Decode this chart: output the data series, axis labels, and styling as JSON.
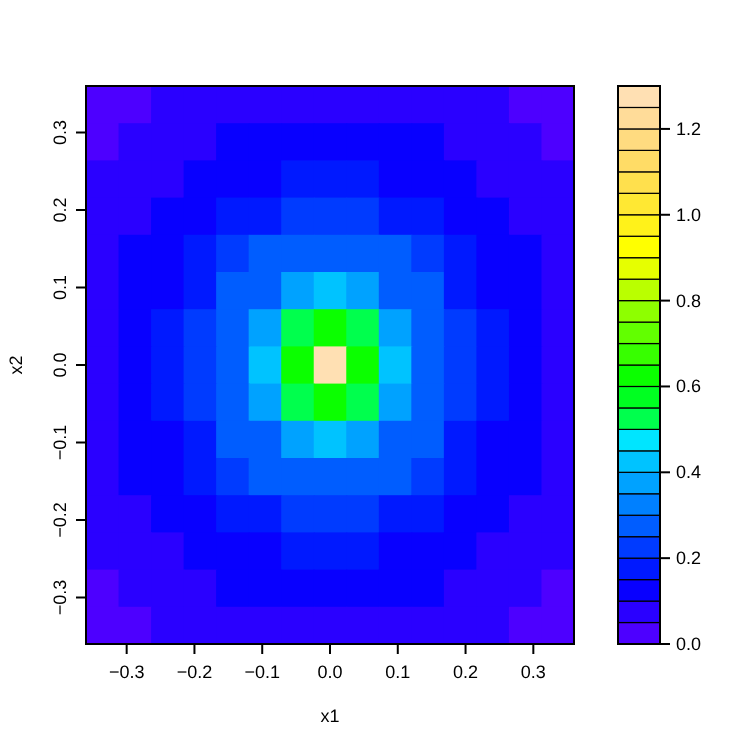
{
  "chart_data": {
    "type": "heatmap",
    "xlabel": "x1",
    "ylabel": "x2",
    "xlim": [
      -0.36,
      0.36
    ],
    "ylim": [
      -0.36,
      0.36
    ],
    "xticks": [
      -0.3,
      -0.2,
      -0.1,
      {
        "value": 0,
        "label": "0.0"
      },
      0.1,
      0.2,
      0.3
    ],
    "yticks": [
      -0.3,
      -0.2,
      -0.1,
      {
        "value": 0,
        "label": "0.0"
      },
      0.1,
      0.2,
      0.3
    ],
    "clim": [
      0,
      1.3
    ],
    "cticks": [
      {
        "value": 0,
        "label": "0.0"
      },
      0.2,
      0.4,
      0.6,
      0.8,
      {
        "value": 1,
        "label": "1.0"
      },
      1.2
    ],
    "colors": [
      "#4d00ff",
      "#2a00ff",
      "#0800ff",
      "#0019ff",
      "#003bff",
      "#005dff",
      "#0080ff",
      "#00a2ff",
      "#00c3ff",
      "#00e5ff",
      "#00ff4d",
      "#00ff21",
      "#0bff00",
      "#37ff00",
      "#62ff00",
      "#8eff00",
      "#baff00",
      "#e6ff00",
      "#ffff00",
      "#fff21a",
      "#ffe833",
      "#ffe04d",
      "#ffdc66",
      "#ffdb80",
      "#ffdc99",
      "#ffe0b3"
    ],
    "cells": [
      [
        0.04,
        0.045,
        0.055,
        0.07,
        0.08,
        0.09,
        0.09,
        0.09,
        0.09,
        0.09,
        0.08,
        0.07,
        0.055,
        0.045,
        0.04
      ],
      [
        0.045,
        0.06,
        0.07,
        0.09,
        0.1,
        0.11,
        0.12,
        0.125,
        0.12,
        0.11,
        0.1,
        0.09,
        0.07,
        0.06,
        0.045
      ],
      [
        0.055,
        0.07,
        0.09,
        0.11,
        0.13,
        0.15,
        0.16,
        0.165,
        0.16,
        0.15,
        0.13,
        0.11,
        0.09,
        0.07,
        0.055
      ],
      [
        0.07,
        0.09,
        0.11,
        0.14,
        0.165,
        0.19,
        0.21,
        0.22,
        0.21,
        0.19,
        0.165,
        0.14,
        0.11,
        0.09,
        0.07
      ],
      [
        0.08,
        0.1,
        0.13,
        0.165,
        0.2,
        0.25,
        0.28,
        0.29,
        0.28,
        0.25,
        0.2,
        0.165,
        0.13,
        0.1,
        0.08
      ],
      [
        0.09,
        0.11,
        0.15,
        0.19,
        0.25,
        0.3,
        0.38,
        0.42,
        0.38,
        0.3,
        0.25,
        0.19,
        0.15,
        0.11,
        0.09
      ],
      [
        0.09,
        0.12,
        0.16,
        0.21,
        0.28,
        0.38,
        0.5,
        0.62,
        0.5,
        0.38,
        0.28,
        0.21,
        0.16,
        0.12,
        0.09
      ],
      [
        0.09,
        0.125,
        0.165,
        0.22,
        0.29,
        0.42,
        0.62,
        1.3,
        0.62,
        0.42,
        0.29,
        0.22,
        0.165,
        0.125,
        0.09
      ],
      [
        0.09,
        0.12,
        0.16,
        0.21,
        0.28,
        0.38,
        0.5,
        0.62,
        0.5,
        0.38,
        0.28,
        0.21,
        0.16,
        0.12,
        0.09
      ],
      [
        0.09,
        0.11,
        0.15,
        0.19,
        0.25,
        0.3,
        0.38,
        0.42,
        0.38,
        0.3,
        0.25,
        0.19,
        0.15,
        0.11,
        0.09
      ],
      [
        0.08,
        0.1,
        0.13,
        0.165,
        0.2,
        0.25,
        0.28,
        0.29,
        0.28,
        0.25,
        0.2,
        0.165,
        0.13,
        0.1,
        0.08
      ],
      [
        0.07,
        0.09,
        0.11,
        0.14,
        0.165,
        0.19,
        0.21,
        0.22,
        0.21,
        0.19,
        0.165,
        0.14,
        0.11,
        0.09,
        0.07
      ],
      [
        0.055,
        0.07,
        0.09,
        0.11,
        0.13,
        0.15,
        0.16,
        0.165,
        0.16,
        0.15,
        0.13,
        0.11,
        0.09,
        0.07,
        0.055
      ],
      [
        0.045,
        0.06,
        0.07,
        0.09,
        0.1,
        0.11,
        0.12,
        0.125,
        0.12,
        0.11,
        0.1,
        0.09,
        0.07,
        0.06,
        0.045
      ],
      [
        0.04,
        0.045,
        0.055,
        0.07,
        0.08,
        0.09,
        0.09,
        0.09,
        0.09,
        0.09,
        0.08,
        0.07,
        0.055,
        0.045,
        0.04
      ]
    ]
  }
}
